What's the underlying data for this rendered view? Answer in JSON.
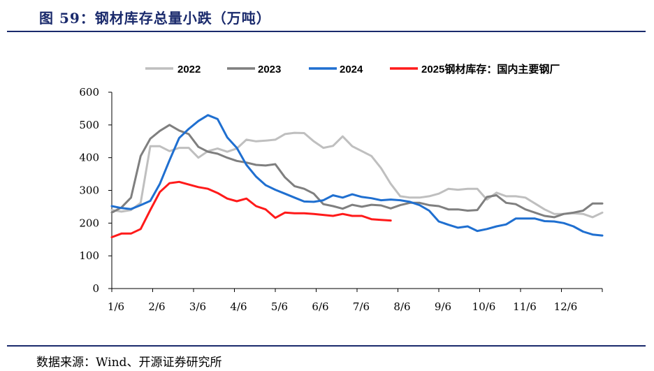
{
  "header": {
    "title": "图 59：钢材库存总量小跌（万吨）"
  },
  "footer": {
    "source": "数据来源：Wind、开源证券研究所"
  },
  "chart_data": {
    "type": "line",
    "title": "图 59：钢材库存总量小跌（万吨）",
    "xlabel": "",
    "ylabel": "",
    "x_tick_labels": [
      "1/6",
      "2/6",
      "3/6",
      "4/6",
      "5/6",
      "6/6",
      "7/6",
      "8/6",
      "9/6",
      "10/6",
      "11/6",
      "12/6"
    ],
    "y_ticks": [
      0,
      100,
      200,
      300,
      400,
      500,
      600
    ],
    "ylim": [
      0,
      600
    ],
    "x_unit": "week of year (1 = first week of January)",
    "xlim": [
      1,
      52
    ],
    "grid": false,
    "legend_position": "top",
    "series": [
      {
        "name": "2022",
        "color": "#bfbfbf",
        "x": [
          1,
          2,
          3,
          4,
          5,
          6,
          7,
          8,
          9,
          10,
          11,
          12,
          13,
          14,
          15,
          16,
          17,
          18,
          19,
          20,
          21,
          22,
          23,
          24,
          25,
          26,
          27,
          28,
          29,
          30,
          31,
          32,
          33,
          34,
          35,
          36,
          37,
          38,
          39,
          40,
          41,
          42,
          43,
          44,
          45,
          46,
          47,
          48,
          49,
          50,
          51,
          52
        ],
        "values": [
          240,
          235,
          240,
          262,
          435,
          435,
          420,
          430,
          430,
          400,
          420,
          428,
          418,
          428,
          455,
          450,
          452,
          455,
          472,
          476,
          475,
          450,
          430,
          436,
          465,
          435,
          420,
          405,
          368,
          320,
          282,
          278,
          278,
          282,
          290,
          305,
          302,
          305,
          305,
          272,
          293,
          282,
          282,
          278,
          260,
          242,
          228,
          228,
          230,
          228,
          218,
          232
        ]
      },
      {
        "name": "2023",
        "color": "#7f7f7f",
        "x": [
          1,
          2,
          3,
          4,
          5,
          6,
          7,
          8,
          9,
          10,
          11,
          12,
          13,
          14,
          15,
          16,
          17,
          18,
          19,
          20,
          21,
          22,
          23,
          24,
          25,
          26,
          27,
          28,
          29,
          30,
          31,
          32,
          33,
          34,
          35,
          36,
          37,
          38,
          39,
          40,
          41,
          42,
          43,
          44,
          45,
          46,
          47,
          48,
          49,
          50,
          51,
          52
        ],
        "values": [
          232,
          248,
          278,
          405,
          458,
          482,
          500,
          483,
          472,
          433,
          418,
          412,
          400,
          390,
          385,
          378,
          376,
          380,
          340,
          313,
          305,
          290,
          258,
          252,
          244,
          256,
          250,
          256,
          254,
          245,
          255,
          262,
          262,
          255,
          252,
          242,
          242,
          238,
          240,
          280,
          285,
          262,
          258,
          242,
          232,
          222,
          218,
          228,
          232,
          238,
          260,
          260
        ]
      },
      {
        "name": "2024",
        "color": "#1f6fd0",
        "x": [
          1,
          2,
          3,
          4,
          5,
          6,
          7,
          8,
          9,
          10,
          11,
          12,
          13,
          14,
          15,
          16,
          17,
          18,
          19,
          20,
          21,
          22,
          23,
          24,
          25,
          26,
          27,
          28,
          29,
          30,
          31,
          32,
          33,
          34,
          35,
          36,
          37,
          38,
          39,
          40,
          41,
          42,
          43,
          44,
          45,
          46,
          47,
          48,
          49,
          50,
          51,
          52
        ],
        "values": [
          252,
          246,
          243,
          255,
          268,
          320,
          392,
          460,
          488,
          512,
          530,
          518,
          462,
          430,
          378,
          342,
          316,
          302,
          290,
          278,
          266,
          265,
          270,
          285,
          278,
          288,
          280,
          276,
          270,
          272,
          270,
          265,
          255,
          238,
          205,
          195,
          186,
          190,
          176,
          182,
          190,
          196,
          214,
          214,
          214,
          206,
          205,
          200,
          190,
          174,
          165,
          162
        ]
      },
      {
        "name": "2025钢材库存：国内主要钢厂",
        "color": "#ff1a1a",
        "x": [
          1,
          2,
          3,
          4,
          5,
          6,
          7,
          8,
          9,
          10,
          11,
          12,
          13,
          14,
          15,
          16,
          17,
          18,
          19,
          20,
          21,
          22,
          23,
          24,
          25,
          26,
          27,
          28,
          29,
          30
        ],
        "values": [
          157,
          168,
          168,
          182,
          240,
          295,
          322,
          326,
          318,
          310,
          305,
          292,
          275,
          267,
          275,
          252,
          242,
          216,
          232,
          230,
          230,
          228,
          225,
          222,
          228,
          222,
          222,
          212,
          210,
          208
        ]
      }
    ]
  }
}
